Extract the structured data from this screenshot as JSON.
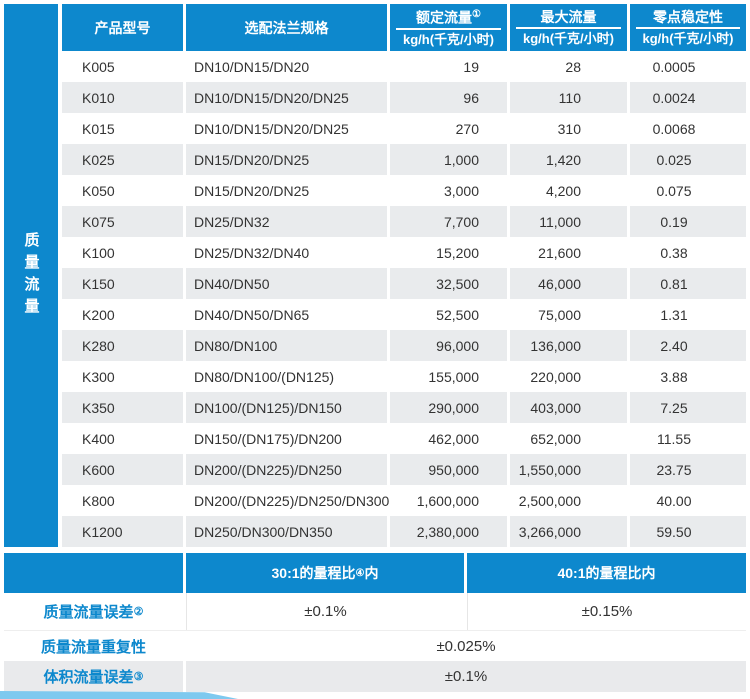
{
  "colors": {
    "accent_blue": "#0d88cd",
    "row_gray": "#e9ebed",
    "text_dark": "#333333",
    "ribbon_light_blue": "#7ec9ef"
  },
  "sidebar": {
    "label": "质量流量"
  },
  "table": {
    "headers": {
      "model": "产品型号",
      "flange": "选配法兰规格",
      "rated": {
        "title": "额定流量",
        "sup": "①",
        "unit": "kg/h(千克/小时)"
      },
      "max": {
        "title": "最大流量",
        "unit": "kg/h(千克/小时)"
      },
      "zero": {
        "title": "零点稳定性",
        "unit": "kg/h(千克/小时)"
      }
    },
    "rows": [
      {
        "model": "K005",
        "flange": "DN10/DN15/DN20",
        "rated": "19",
        "max": "28",
        "zero": "0.0005"
      },
      {
        "model": "K010",
        "flange": "DN10/DN15/DN20/DN25",
        "rated": "96",
        "max": "110",
        "zero": "0.0024"
      },
      {
        "model": "K015",
        "flange": "DN10/DN15/DN20/DN25",
        "rated": "270",
        "max": "310",
        "zero": "0.0068"
      },
      {
        "model": "K025",
        "flange": "DN15/DN20/DN25",
        "rated": "1,000",
        "max": "1,420",
        "zero": "0.025"
      },
      {
        "model": "K050",
        "flange": "DN15/DN20/DN25",
        "rated": "3,000",
        "max": "4,200",
        "zero": "0.075"
      },
      {
        "model": "K075",
        "flange": "DN25/DN32",
        "rated": "7,700",
        "max": "11,000",
        "zero": "0.19"
      },
      {
        "model": "K100",
        "flange": "DN25/DN32/DN40",
        "rated": "15,200",
        "max": "21,600",
        "zero": "0.38"
      },
      {
        "model": "K150",
        "flange": "DN40/DN50",
        "rated": "32,500",
        "max": "46,000",
        "zero": "0.81"
      },
      {
        "model": "K200",
        "flange": "DN40/DN50/DN65",
        "rated": "52,500",
        "max": "75,000",
        "zero": "1.31"
      },
      {
        "model": "K280",
        "flange": "DN80/DN100",
        "rated": "96,000",
        "max": "136,000",
        "zero": "2.40"
      },
      {
        "model": "K300",
        "flange": "DN80/DN100/(DN125)",
        "rated": "155,000",
        "max": "220,000",
        "zero": "3.88"
      },
      {
        "model": "K350",
        "flange": "DN100/(DN125)/DN150",
        "rated": "290,000",
        "max": "403,000",
        "zero": "7.25"
      },
      {
        "model": "K400",
        "flange": "DN150/(DN175)/DN200",
        "rated": "462,000",
        "max": "652,000",
        "zero": "11.55"
      },
      {
        "model": "K600",
        "flange": "DN200/(DN225)/DN250",
        "rated": "950,000",
        "max": "1,550,000",
        "zero": "23.75"
      },
      {
        "model": "K800",
        "flange": "DN200/(DN225)/DN250/DN300",
        "rated": "1,600,000",
        "max": "2,500,000",
        "zero": "40.00"
      },
      {
        "model": "K1200",
        "flange": "DN250/DN300/DN350",
        "rated": "2,380,000",
        "max": "3,266,000",
        "zero": "59.50"
      }
    ]
  },
  "accuracy": {
    "col_a_header": {
      "prefix": "30:1的量程比",
      "sup": "④",
      "suffix": "内"
    },
    "col_b_header": "40:1的量程比内",
    "mass_error": {
      "label": "质量流量误差",
      "sup": "②",
      "value_a": "±0.1%",
      "value_b": "±0.15%"
    },
    "repeatability": {
      "label": "质量流量重复性",
      "value": "±0.025%"
    },
    "volume_error": {
      "label": "体积流量误差",
      "sup": "③",
      "value": "±0.1%"
    }
  }
}
